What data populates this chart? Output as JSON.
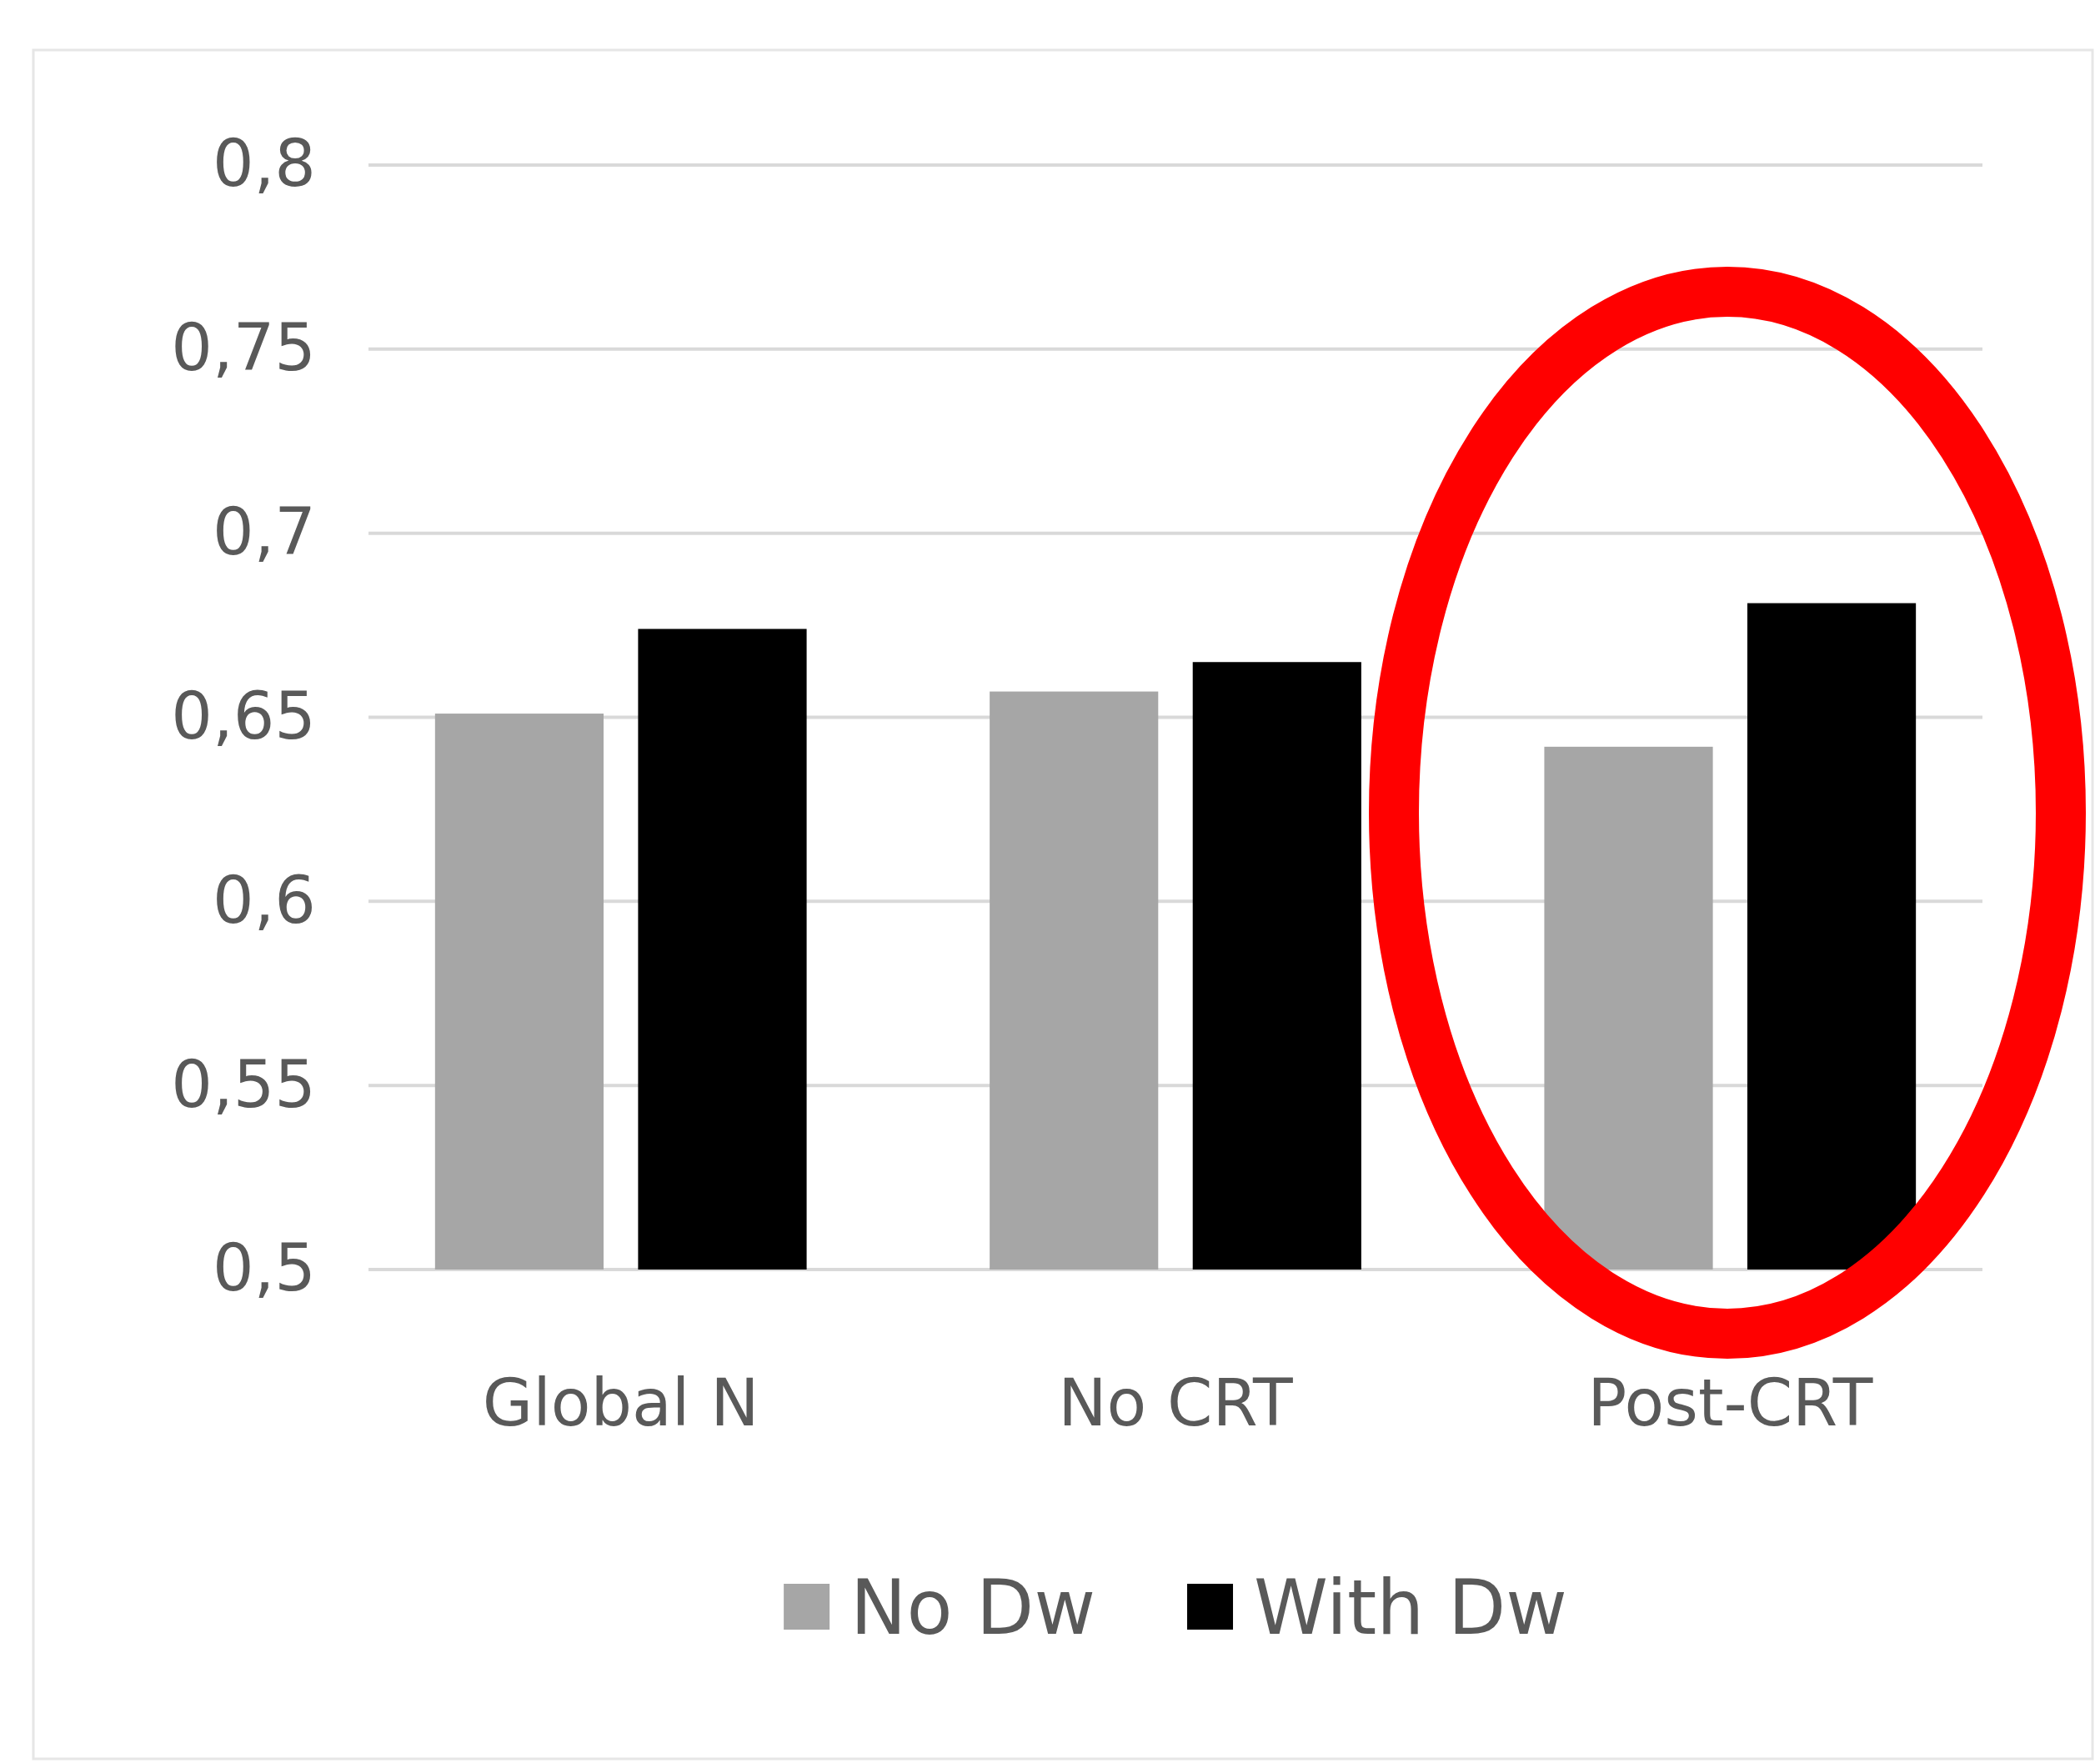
{
  "chart_data": {
    "type": "bar",
    "categories": [
      "Global N",
      "No CRT",
      "Post-CRT"
    ],
    "series": [
      {
        "name": "No Dw",
        "color": "#a6a6a6",
        "values": [
          0.651,
          0.657,
          0.642
        ]
      },
      {
        "name": "With Dw",
        "color": "#000000",
        "values": [
          0.674,
          0.665,
          0.681
        ]
      }
    ],
    "ylim": [
      0.5,
      0.8
    ],
    "yticks": [
      {
        "value": 0.5,
        "label": "0,5"
      },
      {
        "value": 0.55,
        "label": "0,55"
      },
      {
        "value": 0.6,
        "label": "0,6"
      },
      {
        "value": 0.65,
        "label": "0,65"
      },
      {
        "value": 0.7,
        "label": "0,7"
      },
      {
        "value": 0.75,
        "label": "0,75"
      },
      {
        "value": 0.8,
        "label": "0,8"
      }
    ],
    "grid": "y",
    "legend": "bottom"
  }
}
